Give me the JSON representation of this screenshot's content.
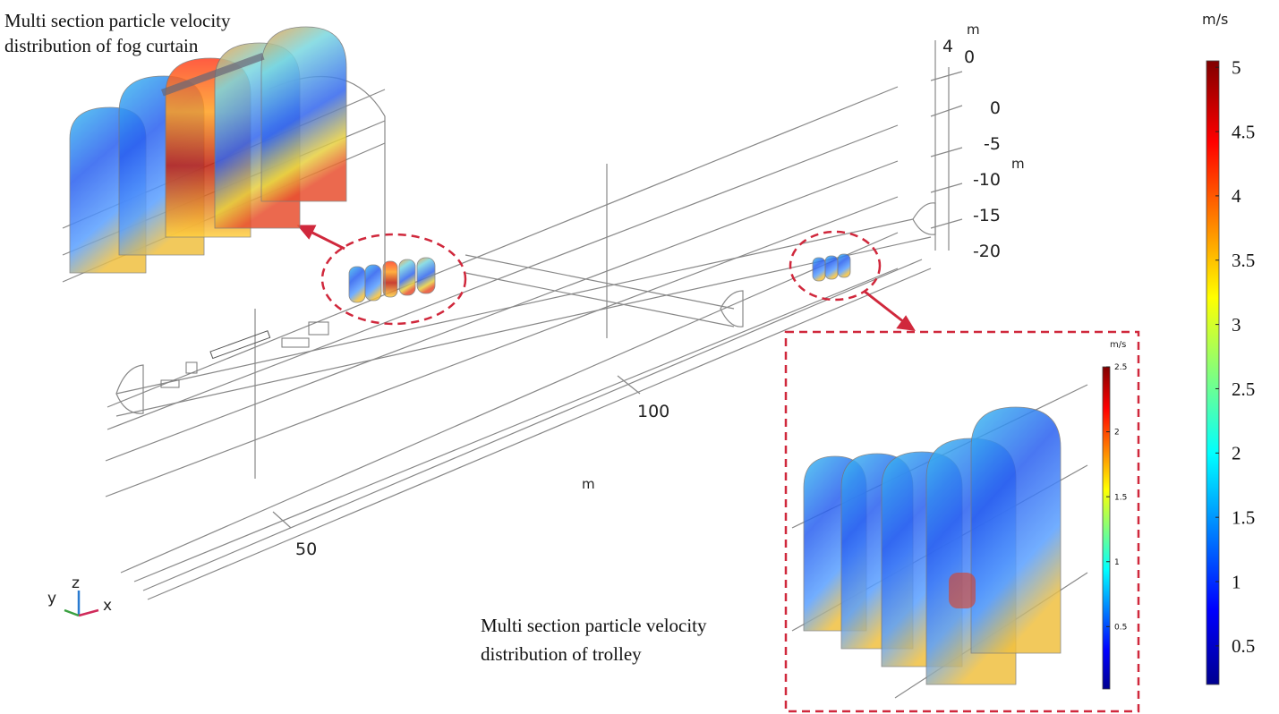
{
  "annotations": {
    "fog_curtain": [
      "Multi section particle velocity",
      "distribution of fog curtain"
    ],
    "trolley": [
      "Multi section particle velocity",
      "distribution of trolley"
    ]
  },
  "axes": {
    "vertical_unit": "m",
    "vertical_top": 4,
    "vertical_zero": 0,
    "y_ticks": [
      0,
      -5,
      -10,
      -15,
      -20
    ],
    "y_unit": "m",
    "x_ticks": [
      100,
      50
    ],
    "x_unit": "m",
    "triad": {
      "x": "x",
      "y": "y",
      "z": "z"
    }
  },
  "colorbar": {
    "unit": "m/s",
    "lim": [
      0.2,
      5.05
    ],
    "ticks": [
      5,
      4.5,
      4,
      3.5,
      3,
      2.5,
      2,
      1.5,
      1,
      0.5
    ]
  },
  "inset_colorbar": {
    "unit": "m/s",
    "lim": [
      0.02,
      2.5
    ],
    "ticks": [
      2.5,
      2,
      1.5,
      1,
      0.5
    ]
  }
}
